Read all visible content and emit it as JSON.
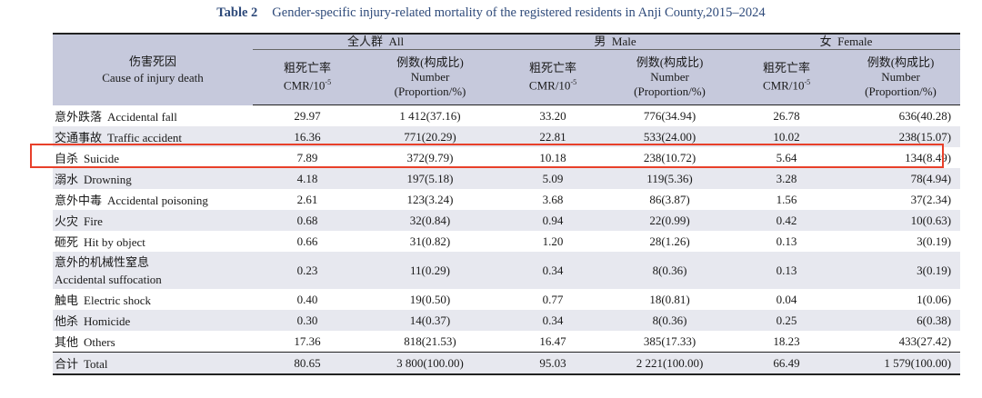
{
  "caption": {
    "label": "Table 2",
    "text": "Gender-specific injury-related mortality of the registered residents in Anji County,2015–2024"
  },
  "header": {
    "cause_cn": "伤害死因",
    "cause_en": "Cause of injury death",
    "groups": [
      {
        "cn": "全人群",
        "en": "All"
      },
      {
        "cn": "男",
        "en": "Male"
      },
      {
        "cn": "女",
        "en": "Female"
      }
    ],
    "cmr_cn": "粗死亡率",
    "cmr_en": "CMR/10",
    "cmr_exp": "-5",
    "num_cn": "例数(构成比)",
    "num_en": "Number",
    "num_prop": "(Proportion/%)"
  },
  "rows": [
    {
      "cn": "意外跌落",
      "en": "Accidental fall",
      "all_cmr": "29.97",
      "all_num": "1 412(37.16)",
      "m_cmr": "33.20",
      "m_num": "776(34.94)",
      "f_cmr": "26.78",
      "f_num": "636(40.28)"
    },
    {
      "cn": "交通事故",
      "en": "Traffic accident",
      "all_cmr": "16.36",
      "all_num": "771(20.29)",
      "m_cmr": "22.81",
      "m_num": "533(24.00)",
      "f_cmr": "10.02",
      "f_num": "238(15.07)"
    },
    {
      "cn": "自杀",
      "en": "Suicide",
      "all_cmr": "7.89",
      "all_num": "372(9.79)",
      "m_cmr": "10.18",
      "m_num": "238(10.72)",
      "f_cmr": "5.64",
      "f_num": "134(8.49)"
    },
    {
      "cn": "溺水",
      "en": "Drowning",
      "all_cmr": "4.18",
      "all_num": "197(5.18)",
      "m_cmr": "5.09",
      "m_num": "119(5.36)",
      "f_cmr": "3.28",
      "f_num": "78(4.94)"
    },
    {
      "cn": "意外中毒",
      "en": "Accidental poisoning",
      "all_cmr": "2.61",
      "all_num": "123(3.24)",
      "m_cmr": "3.68",
      "m_num": "86(3.87)",
      "f_cmr": "1.56",
      "f_num": "37(2.34)"
    },
    {
      "cn": "火灾",
      "en": "Fire",
      "all_cmr": "0.68",
      "all_num": "32(0.84)",
      "m_cmr": "0.94",
      "m_num": "22(0.99)",
      "f_cmr": "0.42",
      "f_num": "10(0.63)"
    },
    {
      "cn": "砸死",
      "en": "Hit by object",
      "all_cmr": "0.66",
      "all_num": "31(0.82)",
      "m_cmr": "1.20",
      "m_num": "28(1.26)",
      "f_cmr": "0.13",
      "f_num": "3(0.19)"
    },
    {
      "cn": "意外的机械性窒息",
      "en": "Accidental suffocation",
      "all_cmr": "0.23",
      "all_num": "11(0.29)",
      "m_cmr": "0.34",
      "m_num": "8(0.36)",
      "f_cmr": "0.13",
      "f_num": "3(0.19)"
    },
    {
      "cn": "触电",
      "en": "Electric shock",
      "all_cmr": "0.40",
      "all_num": "19(0.50)",
      "m_cmr": "0.77",
      "m_num": "18(0.81)",
      "f_cmr": "0.04",
      "f_num": "1(0.06)"
    },
    {
      "cn": "他杀",
      "en": "Homicide",
      "all_cmr": "0.30",
      "all_num": "14(0.37)",
      "m_cmr": "0.34",
      "m_num": "8(0.36)",
      "f_cmr": "0.25",
      "f_num": "6(0.38)"
    },
    {
      "cn": "其他",
      "en": "Others",
      "all_cmr": "17.36",
      "all_num": "818(21.53)",
      "m_cmr": "16.47",
      "m_num": "385(17.33)",
      "f_cmr": "18.23",
      "f_num": "433(27.42)"
    }
  ],
  "total": {
    "cn": "合计",
    "en": "Total",
    "all_cmr": "80.65",
    "all_num": "3 800(100.00)",
    "m_cmr": "95.03",
    "m_num": "2 221(100.00)",
    "f_cmr": "66.49",
    "f_num": "1 579(100.00)"
  },
  "highlight_color": "#e8402a",
  "header_bg": "#c6c9dc",
  "stripe_bg": "#e7e8ef"
}
